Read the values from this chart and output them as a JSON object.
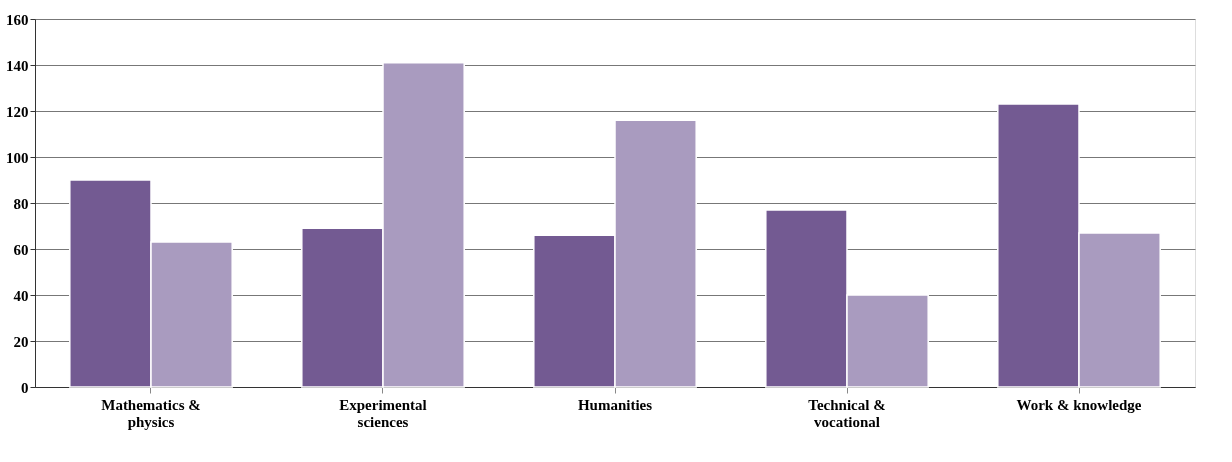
{
  "chart_data": {
    "type": "bar",
    "categories": [
      "Mathematics & physics",
      "Experimental sciences",
      "Humanities",
      "Technical & vocational",
      "Work & knowledge"
    ],
    "series": [
      {
        "color": "#735a92",
        "values": [
          90,
          69,
          66,
          77,
          123
        ]
      },
      {
        "color": "#a99bbf",
        "values": [
          63,
          141,
          116,
          40,
          67
        ]
      }
    ],
    "ylim": [
      0,
      160
    ],
    "yticks": [
      0,
      20,
      40,
      60,
      80,
      100,
      120,
      140,
      160
    ],
    "grid": "y",
    "legend": false
  }
}
